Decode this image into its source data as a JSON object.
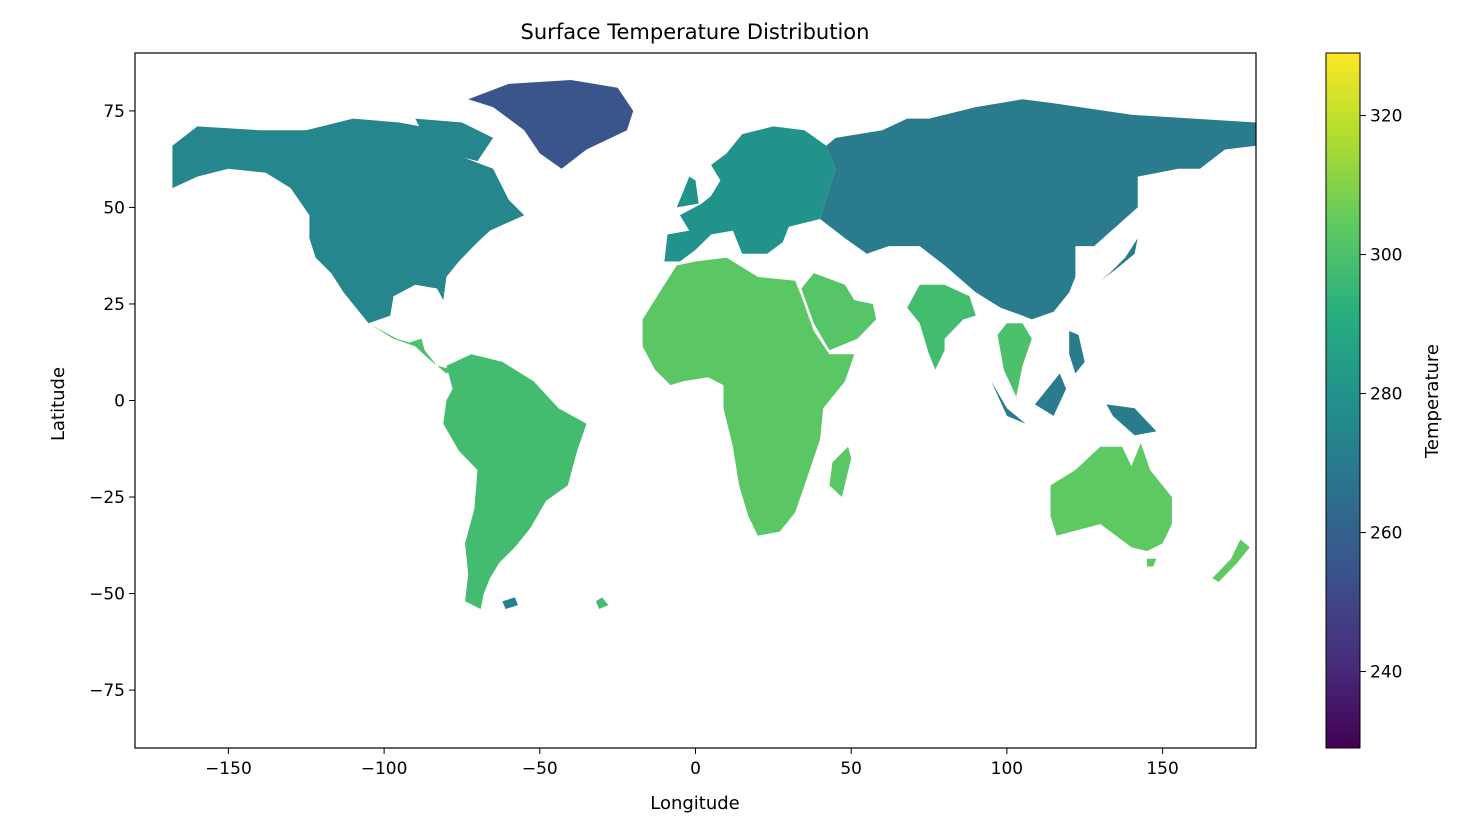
{
  "chart_data": {
    "type": "heatmap",
    "title": "Surface Temperature Distribution",
    "xlabel": "Longitude",
    "ylabel": "Latitude",
    "xlim": [
      -180,
      180
    ],
    "ylim": [
      -90,
      90
    ],
    "x_ticks": [
      -150,
      -100,
      -50,
      0,
      50,
      100,
      150
    ],
    "y_ticks": [
      75,
      50,
      25,
      0,
      -25,
      -50,
      -75
    ],
    "x_tick_labels": [
      "−150",
      "−100",
      "−50",
      "0",
      "50",
      "100",
      "150"
    ],
    "y_tick_labels": [
      "75",
      "50",
      "25",
      "0",
      "−25",
      "−50",
      "−75"
    ],
    "grid": false,
    "colormap": "viridis",
    "colorbar": {
      "label": "Temperature",
      "range": [
        229,
        329
      ],
      "ticks": [
        240,
        260,
        280,
        300,
        320
      ],
      "tick_labels": [
        "240",
        "260",
        "280",
        "300",
        "320"
      ]
    },
    "regions": [
      {
        "name": "North America",
        "temperature": 275
      },
      {
        "name": "Greenland",
        "temperature": 255
      },
      {
        "name": "Central America",
        "temperature": 300
      },
      {
        "name": "South America",
        "temperature": 298
      },
      {
        "name": "Europe",
        "temperature": 280
      },
      {
        "name": "Africa",
        "temperature": 303
      },
      {
        "name": "Asia",
        "temperature": 270
      },
      {
        "name": "Arabia",
        "temperature": 302
      },
      {
        "name": "India",
        "temperature": 298
      },
      {
        "name": "Southeast Asia",
        "temperature": 300
      },
      {
        "name": "Australia",
        "temperature": 304
      },
      {
        "name": "Antarctic Islands",
        "temperature": 272
      }
    ]
  }
}
